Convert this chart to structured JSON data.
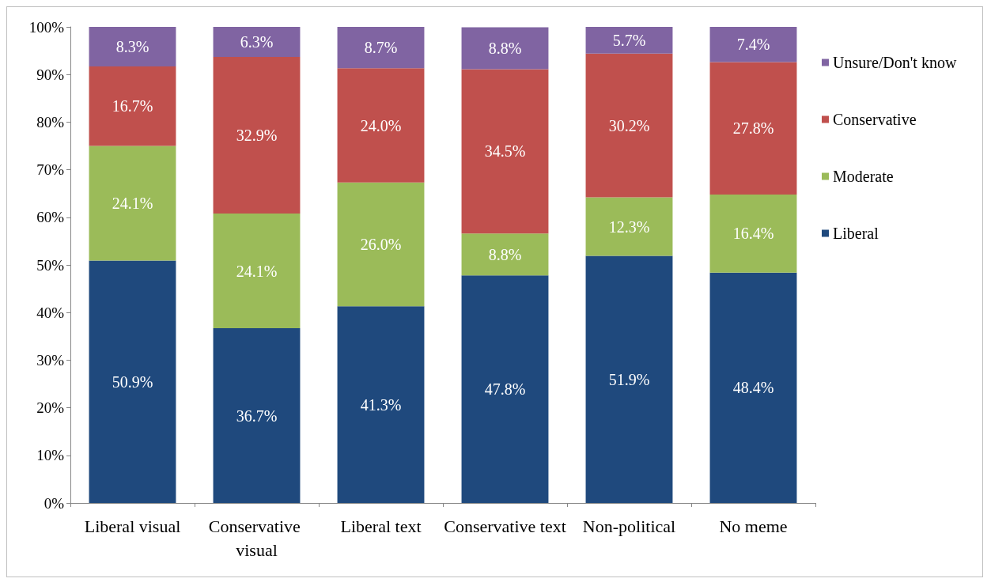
{
  "chart_data": {
    "type": "bar",
    "stacked": true,
    "categories": [
      "Liberal visual",
      "Conservative visual",
      "Liberal text",
      "Conservative text",
      "Non-political",
      "No meme"
    ],
    "series": [
      {
        "name": "Liberal",
        "color": "#1f497d",
        "values": [
          50.9,
          36.7,
          41.3,
          47.8,
          51.9,
          48.4
        ],
        "value_labels": [
          "50.9%",
          "36.7%",
          "41.3%",
          "47.8%",
          "51.9%",
          "48.4%"
        ]
      },
      {
        "name": "Moderate",
        "color": "#9bbb59",
        "values": [
          24.1,
          24.1,
          26.0,
          8.8,
          12.3,
          16.4
        ],
        "value_labels": [
          "24.1%",
          "24.1%",
          "26.0%",
          "8.8%",
          "12.3%",
          "16.4%"
        ]
      },
      {
        "name": "Conservative",
        "color": "#c0504d",
        "values": [
          16.7,
          32.9,
          24.0,
          34.5,
          30.2,
          27.8
        ],
        "value_labels": [
          "16.7%",
          "32.9%",
          "24.0%",
          "34.5%",
          "30.2%",
          "27.8%"
        ]
      },
      {
        "name": "Unsure/Don't know",
        "color": "#8064a2",
        "values": [
          8.3,
          6.3,
          8.7,
          8.8,
          5.7,
          7.4
        ],
        "value_labels": [
          "8.3%",
          "6.3%",
          "8.7%",
          "8.8%",
          "5.7%",
          "7.4%"
        ]
      }
    ],
    "ylim": [
      0,
      100
    ],
    "yticks": [
      {
        "value": 0,
        "label": "0%"
      },
      {
        "value": 10,
        "label": "10%"
      },
      {
        "value": 20,
        "label": "20%"
      },
      {
        "value": 30,
        "label": "30%"
      },
      {
        "value": 40,
        "label": "40%"
      },
      {
        "value": 50,
        "label": "50%"
      },
      {
        "value": 60,
        "label": "60%"
      },
      {
        "value": 70,
        "label": "70%"
      },
      {
        "value": 80,
        "label": "80%"
      },
      {
        "value": 90,
        "label": "90%"
      },
      {
        "value": 100,
        "label": "100%"
      }
    ],
    "grid": false,
    "legend": "right"
  }
}
